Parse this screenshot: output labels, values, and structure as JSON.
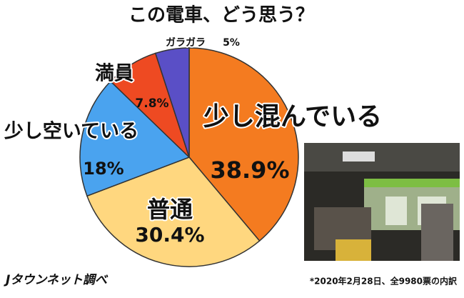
{
  "chart_data": {
    "type": "pie",
    "title": "この電車、どう思う？",
    "categories": [
      "少し混んでいる",
      "普通",
      "少し空いている",
      "満員",
      "ガラガラ"
    ],
    "values": [
      38.9,
      30.4,
      18,
      7.8,
      5
    ],
    "value_labels": [
      "38.9%",
      "30.4%",
      "18%",
      "7.8%",
      "5%"
    ],
    "colors": [
      "#f47b20",
      "#ffd77f",
      "#4aa3ef",
      "#ee4a22",
      "#5a4fc6"
    ]
  },
  "footer": {
    "source": "Jタウンネット調べ",
    "note": "*2020年2月28日、全9980票の内訳"
  }
}
